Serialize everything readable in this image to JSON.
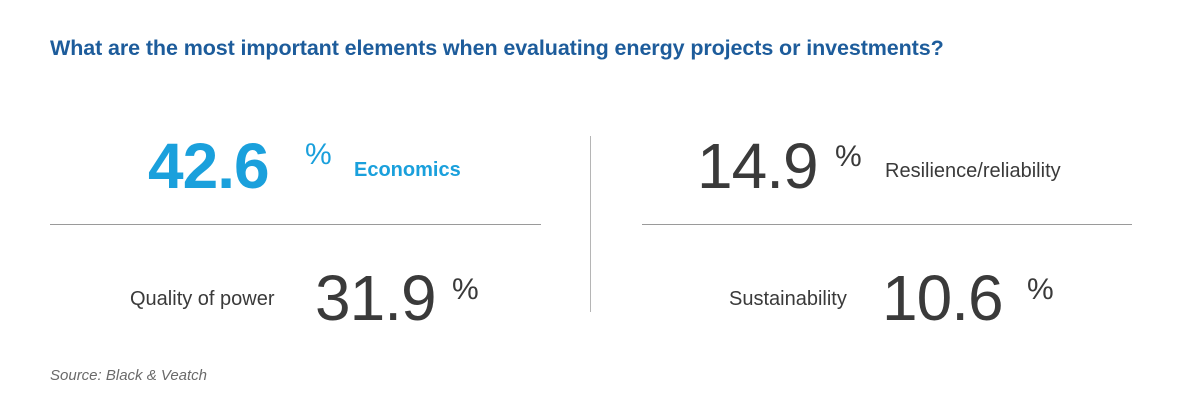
{
  "title": "What are the most important elements when evaluating energy projects or investments?",
  "source": "Source: Black & Veatch",
  "colors": {
    "title": "#1d5c9b",
    "highlight": "#1aa0dc",
    "text": "#3a3a3a"
  },
  "chart_data": {
    "type": "table",
    "title": "What are the most important elements when evaluating energy projects or investments?",
    "unit": "%",
    "categories": [
      "Economics",
      "Quality of power",
      "Resilience/reliability",
      "Sustainability"
    ],
    "values": [
      42.6,
      31.9,
      14.9,
      10.6
    ],
    "items": [
      {
        "label": "Economics",
        "value": "42.6",
        "unit": "%",
        "highlighted": true
      },
      {
        "label": "Quality of power",
        "value": "31.9",
        "unit": "%",
        "highlighted": false
      },
      {
        "label": "Resilience/reliability",
        "value": "14.9",
        "unit": "%",
        "highlighted": false
      },
      {
        "label": "Sustainability",
        "value": "10.6",
        "unit": "%",
        "highlighted": false
      }
    ]
  }
}
